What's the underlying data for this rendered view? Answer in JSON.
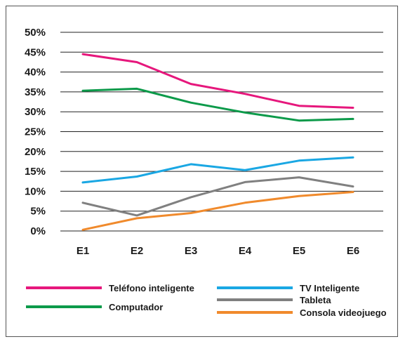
{
  "chart_data": {
    "type": "line",
    "title": "",
    "xlabel": "",
    "ylabel": "",
    "categories": [
      "E1",
      "E2",
      "E3",
      "E4",
      "E5",
      "E6"
    ],
    "ylim": [
      0,
      50
    ],
    "y_ticks": [
      "0%",
      "5%",
      "10%",
      "15%",
      "20%",
      "25%",
      "30%",
      "35%",
      "40%",
      "45%",
      "50%"
    ],
    "grid": true,
    "legend_position": "bottom",
    "series": [
      {
        "name": "Teléfono inteligente",
        "color": "#e6177c",
        "values": [
          44.5,
          42.5,
          37,
          34.5,
          31.5,
          31
        ]
      },
      {
        "name": "Computador",
        "color": "#0c9a4a",
        "values": [
          35.3,
          35.8,
          32.3,
          29.8,
          27.8,
          28.2
        ]
      },
      {
        "name": "TV Inteligente",
        "color": "#1aa7e3",
        "values": [
          12.2,
          13.7,
          16.8,
          15.3,
          17.7,
          18.5
        ]
      },
      {
        "name": "Tableta",
        "color": "#808080",
        "values": [
          7.1,
          3.9,
          8.5,
          12.3,
          13.5,
          11.2
        ]
      },
      {
        "name": "Consola videojuego",
        "color": "#f08a2c",
        "values": [
          0.3,
          3.2,
          4.5,
          7.1,
          8.8,
          9.8
        ]
      }
    ]
  }
}
